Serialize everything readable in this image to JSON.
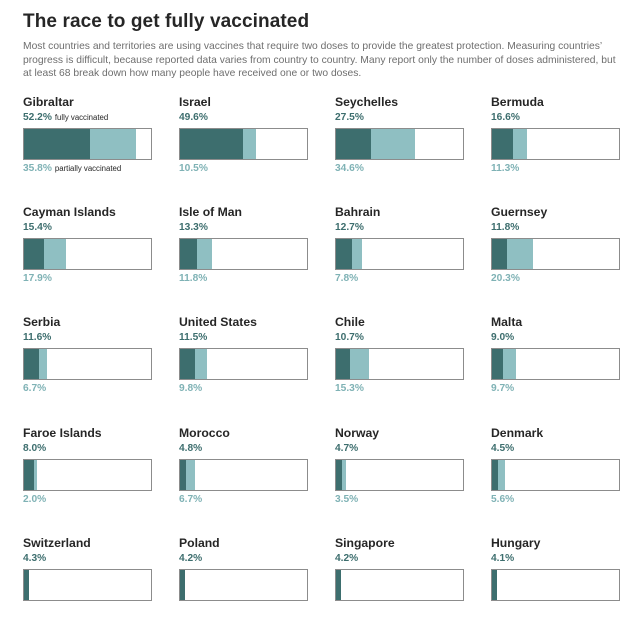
{
  "title": "The race to get fully vaccinated",
  "subtitle": "Most countries and territories are using vaccines that require two doses to provide the greatest protection. Measuring countries’ progress is difficult, because reported data varies from country to country. Many report only the number of doses administered, but at least 68 break down how many people have received one or two doses.",
  "labels": {
    "fully": "fully vaccinated",
    "partially": "partially vaccinated"
  },
  "colors": {
    "fully": "#3d6e6e",
    "partially": "#8fbfc2",
    "partial_text": "#7fb2b5",
    "border": "#8c8c8c"
  },
  "chart_data": {
    "type": "bar",
    "units": "percent of population",
    "series": [
      {
        "name": "fully vaccinated",
        "color": "#3d6e6e"
      },
      {
        "name": "partially vaccinated",
        "color": "#8fbfc2"
      }
    ],
    "countries": [
      {
        "name": "Gibraltar",
        "fully": 52.2,
        "fully_label": "52.2%",
        "partial": 35.8,
        "partial_label": "35.8%"
      },
      {
        "name": "Israel",
        "fully": 49.6,
        "fully_label": "49.6%",
        "partial": 10.5,
        "partial_label": "10.5%"
      },
      {
        "name": "Seychelles",
        "fully": 27.5,
        "fully_label": "27.5%",
        "partial": 34.6,
        "partial_label": "34.6%"
      },
      {
        "name": "Bermuda",
        "fully": 16.6,
        "fully_label": "16.6%",
        "partial": 11.3,
        "partial_label": "11.3%"
      },
      {
        "name": "Cayman Islands",
        "fully": 15.4,
        "fully_label": "15.4%",
        "partial": 17.9,
        "partial_label": "17.9%"
      },
      {
        "name": "Isle of Man",
        "fully": 13.3,
        "fully_label": "13.3%",
        "partial": 11.8,
        "partial_label": "11.8%"
      },
      {
        "name": "Bahrain",
        "fully": 12.7,
        "fully_label": "12.7%",
        "partial": 7.8,
        "partial_label": "7.8%"
      },
      {
        "name": "Guernsey",
        "fully": 11.8,
        "fully_label": "11.8%",
        "partial": 20.3,
        "partial_label": "20.3%"
      },
      {
        "name": "Serbia",
        "fully": 11.6,
        "fully_label": "11.6%",
        "partial": 6.7,
        "partial_label": "6.7%"
      },
      {
        "name": "United States",
        "fully": 11.5,
        "fully_label": "11.5%",
        "partial": 9.8,
        "partial_label": "9.8%"
      },
      {
        "name": "Chile",
        "fully": 10.7,
        "fully_label": "10.7%",
        "partial": 15.3,
        "partial_label": "15.3%"
      },
      {
        "name": "Malta",
        "fully": 9.0,
        "fully_label": "9.0%",
        "partial": 9.7,
        "partial_label": "9.7%"
      },
      {
        "name": "Faroe Islands",
        "fully": 8.0,
        "fully_label": "8.0%",
        "partial": 2.0,
        "partial_label": "2.0%"
      },
      {
        "name": "Morocco",
        "fully": 4.8,
        "fully_label": "4.8%",
        "partial": 6.7,
        "partial_label": "6.7%"
      },
      {
        "name": "Norway",
        "fully": 4.7,
        "fully_label": "4.7%",
        "partial": 3.5,
        "partial_label": "3.5%"
      },
      {
        "name": "Denmark",
        "fully": 4.5,
        "fully_label": "4.5%",
        "partial": 5.6,
        "partial_label": "5.6%"
      },
      {
        "name": "Switzerland",
        "fully": 4.3,
        "fully_label": "4.3%",
        "partial": null,
        "partial_label": null
      },
      {
        "name": "Poland",
        "fully": 4.2,
        "fully_label": "4.2%",
        "partial": null,
        "partial_label": null
      },
      {
        "name": "Singapore",
        "fully": 4.2,
        "fully_label": "4.2%",
        "partial": null,
        "partial_label": null
      },
      {
        "name": "Hungary",
        "fully": 4.1,
        "fully_label": "4.1%",
        "partial": null,
        "partial_label": null
      }
    ]
  }
}
